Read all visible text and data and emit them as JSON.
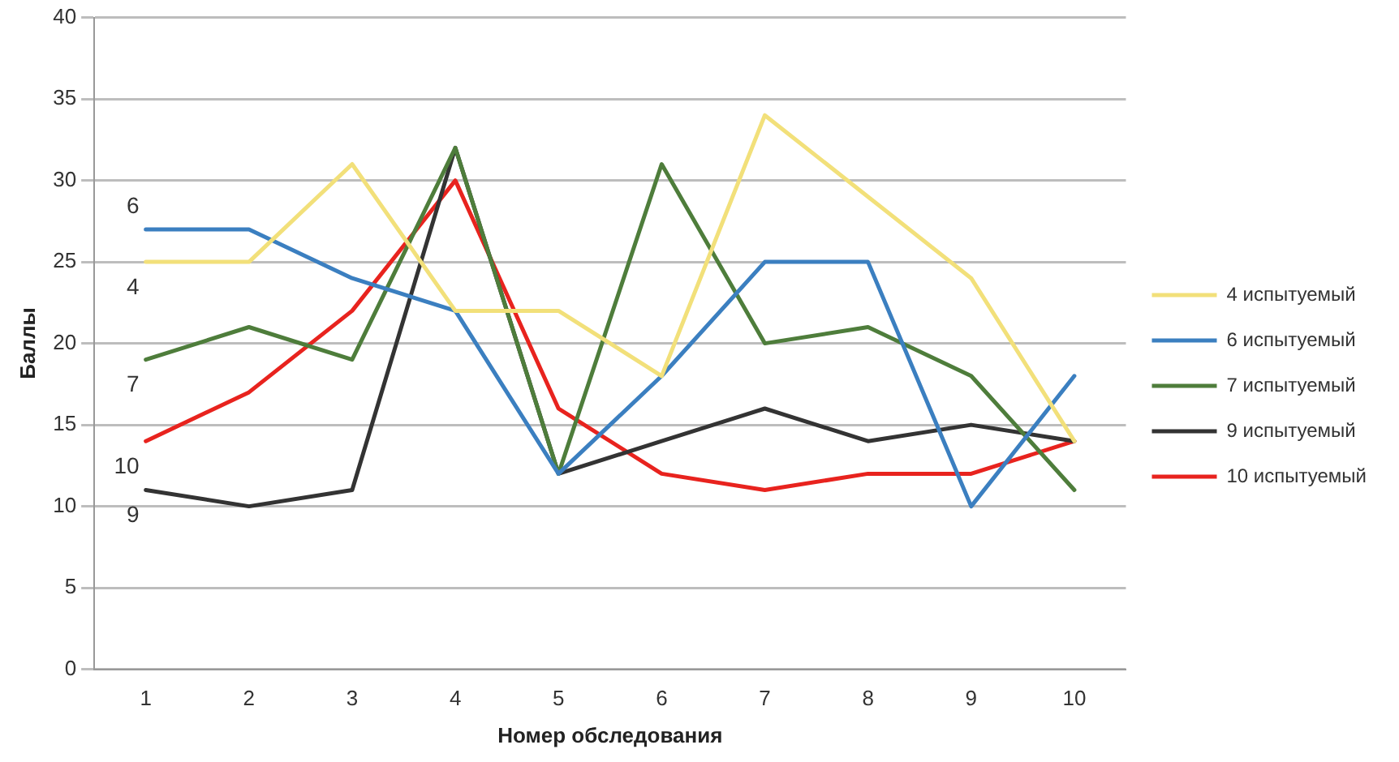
{
  "chart_data": {
    "type": "line",
    "xlabel": "Номер обследования",
    "ylabel": "Баллы",
    "categories": [
      "1",
      "2",
      "3",
      "4",
      "5",
      "6",
      "7",
      "8",
      "9",
      "10"
    ],
    "series": [
      {
        "name": "4 испытуемый",
        "color": "#f2e07a",
        "values": [
          25,
          25,
          31,
          22,
          22,
          18,
          34,
          29,
          24,
          14
        ]
      },
      {
        "name": "6 испытуемый",
        "color": "#3b7fc0",
        "values": [
          27,
          27,
          24,
          22,
          12,
          18,
          25,
          25,
          10,
          18
        ]
      },
      {
        "name": "7 испытуемый",
        "color": "#4e7d3b",
        "values": [
          19,
          21,
          19,
          32,
          12,
          31,
          20,
          21,
          18,
          11
        ]
      },
      {
        "name": "9 испытуемый",
        "color": "#333333",
        "values": [
          11,
          10,
          11,
          32,
          12,
          14,
          16,
          14,
          15,
          14
        ]
      },
      {
        "name": "10 испытуемый",
        "color": "#e8231e",
        "values": [
          14,
          17,
          22,
          30,
          16,
          12,
          11,
          12,
          12,
          14
        ]
      }
    ],
    "ylim": [
      0,
      40
    ],
    "yticks": [
      0,
      5,
      10,
      15,
      20,
      25,
      30,
      35,
      40
    ],
    "grid": "y",
    "legend": "right",
    "marker": "none",
    "line_style": "solid",
    "annotations": [
      {
        "text": "6",
        "x": "1",
        "y": 27
      },
      {
        "text": "4",
        "x": "1",
        "y": 25
      },
      {
        "text": "7",
        "x": "1",
        "y": 19
      },
      {
        "text": "10",
        "x": "1",
        "y": 14
      },
      {
        "text": "9",
        "x": "1",
        "y": 11
      }
    ]
  }
}
